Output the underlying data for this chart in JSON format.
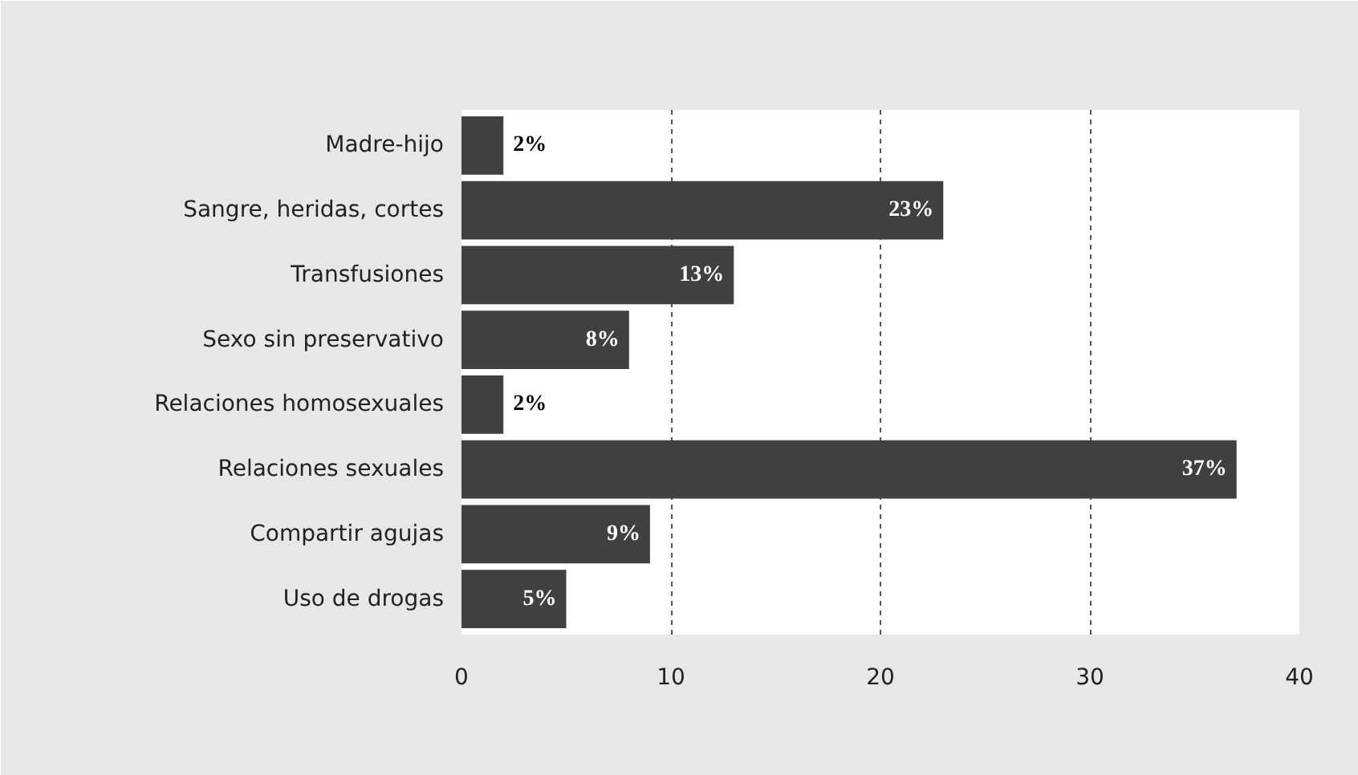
{
  "chart_data": {
    "type": "bar",
    "orientation": "horizontal",
    "categories": [
      "Madre-hijo",
      "Sangre, heridas, cortes",
      "Transfusiones",
      "Sexo sin preservativo",
      "Relaciones homosexuales",
      "Relaciones sexuales",
      "Compartir agujas",
      "Uso de drogas"
    ],
    "values": [
      2,
      23,
      13,
      8,
      2,
      37,
      9,
      5
    ],
    "value_labels": [
      "2%",
      "23%",
      "13%",
      "8%",
      "2%",
      "37%",
      "9%",
      "5%"
    ],
    "color": "#404040",
    "xlim": [
      0,
      40
    ],
    "xticks": [
      0,
      10,
      20,
      30,
      40
    ],
    "grid": "x"
  }
}
